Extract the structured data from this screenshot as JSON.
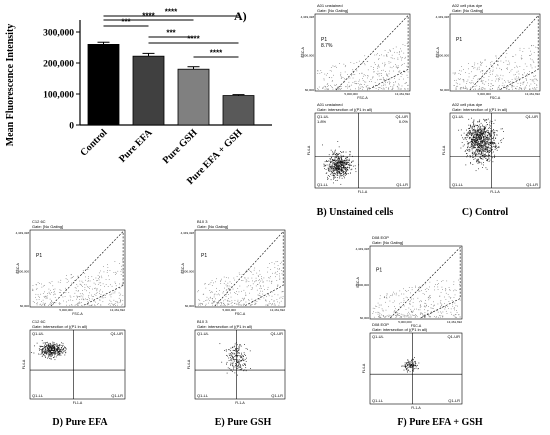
{
  "bar_chart": {
    "panel_label": "A)",
    "ylabel": "Mean Fluorescence Intensity",
    "yticks": [
      "0",
      "100,000",
      "200,000",
      "300,000"
    ],
    "sig_labels": [
      "****",
      "***",
      "****",
      "***",
      "****",
      "****"
    ],
    "colors": [
      "#000000",
      "#404040",
      "#808080",
      "#595959",
      "#cfcfcf"
    ]
  },
  "chart_data": {
    "type": "bar",
    "categories": [
      "Control",
      "Pure EFA",
      "Pure GSH",
      "Pure EFA + GSH"
    ],
    "values": [
      260000,
      222000,
      180000,
      95000
    ],
    "errors": [
      7000,
      9000,
      8000,
      3000
    ],
    "title": "",
    "xlabel": "",
    "ylabel": "Mean Fluorescence Intensity",
    "ylim": [
      0,
      300000
    ],
    "grid": false,
    "legend": "none"
  },
  "flow_panels": [
    {
      "caption": "B) Unstained cells",
      "top_header": "A01 unstained",
      "top_gate": "Gate: [No Gating]",
      "bottom_header": "A01 unstained",
      "bottom_gate": "Gate: intersection of ((P1 in all)",
      "p1_label": "P1",
      "p1_pct": "8.7%",
      "q_ul": "Q1-UL",
      "q_ur": "Q1-UR",
      "q_ll": "Q1-LL",
      "q_lr": "Q1-LR",
      "q_ul_pct": "1.8%",
      "q_ur_pct": "0.0%",
      "ssc": "SSC-A",
      "fsc": "FSC-A",
      "fla": "FL4-A",
      "fl1": "FL1-A",
      "y_top": "4,349,328",
      "y_mid": "2,000,000",
      "y_bot": "60,000",
      "x_mid": "5,000,000",
      "x_end": "13,461,692"
    },
    {
      "caption": "C) Control",
      "top_header": "A02 cell plus dye",
      "top_gate": "Gate: [No Gating]",
      "bottom_header": "A02 cell plus dye",
      "bottom_gate": "Gate: intersection of ((P1 in all)",
      "p1_label": "P1",
      "q_ul": "Q1-UL",
      "q_ur": "Q1-UR",
      "q_ll": "Q1-LL",
      "q_lr": "Q1-LR",
      "ssc": "SSC-A",
      "fsc": "FSC-A",
      "fla": "FL4-A",
      "fl1": "FL1-A",
      "y_top": "4,349,328",
      "y_mid": "2,000,000",
      "y_bot": "60,000",
      "x_mid": "5,000,000",
      "x_end": "13,461,692"
    },
    {
      "caption": "D) Pure EFA",
      "top_header": "C12 6C",
      "top_gate": "Gate: [No Gating]",
      "bottom_header": "C12 6C",
      "bottom_gate": "Gate: intersection of ((P1 in all)",
      "p1_label": "P1",
      "q_ul": "Q1-UL",
      "q_ur": "Q1-UR",
      "q_ll": "Q1-LL",
      "q_lr": "Q1-LR",
      "ssc": "SSC-A",
      "fsc": "FSC-A",
      "fla": "FL4-A",
      "fl1": "FL1-A",
      "y_top": "4,349,328",
      "y_mid": "2,000,000",
      "y_bot": "60,000",
      "x_mid": "5,000,000",
      "x_end": "13,461,692"
    },
    {
      "caption": "E) Pure GSH",
      "top_header": "B10 3",
      "top_gate": "Gate: [No Gating]",
      "bottom_header": "B10 3",
      "bottom_gate": "Gate: intersection of ((P1 in all)",
      "p1_label": "P1",
      "q_ul": "Q1-UL",
      "q_ur": "Q1-UR",
      "q_ll": "Q1-LL",
      "q_lr": "Q1-LR",
      "ssc": "SSC-A",
      "fsc": "FSC-A",
      "fla": "FL4-A",
      "fl1": "FL1-A",
      "y_top": "4,349,328",
      "y_mid": "2,000,000",
      "y_bot": "60,000",
      "x_mid": "5,000,000",
      "x_end": "13,461,692"
    },
    {
      "caption": "F) Pure EFA + GSH",
      "top_header": "D08 EOP",
      "top_gate": "Gate: [No Gating]",
      "bottom_header": "D08 EOP",
      "bottom_gate": "Gate: intersection of ((P1 in all)",
      "p1_label": "P1",
      "q_ul": "Q1-UL",
      "q_ur": "Q1-UR",
      "q_ll": "Q1-LL",
      "q_lr": "Q1-LR",
      "ssc": "SSC-A",
      "fsc": "FSC-A",
      "fla": "FL4-A",
      "fl1": "FL1-A",
      "y_top": "4,349,328",
      "y_mid": "2,000,000",
      "y_bot": "60,000",
      "x_mid": "5,000,000",
      "x_end": "13,461,692"
    }
  ]
}
